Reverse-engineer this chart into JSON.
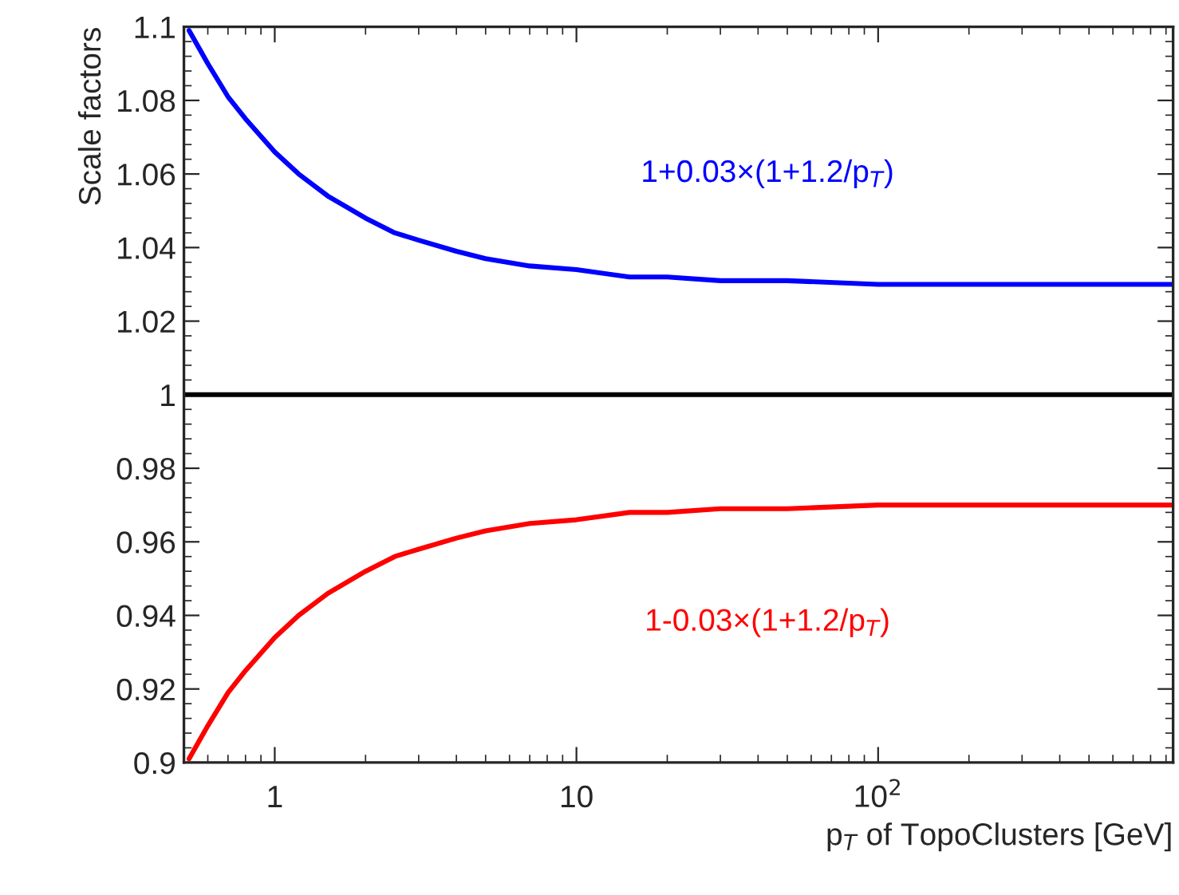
{
  "chart_data": {
    "type": "line",
    "xlabel": "p$_{T}$ of TopoClusters [GeV]",
    "ylabel": "Scale factors",
    "log": "x",
    "xlim": [
      0.5,
      950
    ],
    "xticks": [
      1,
      10,
      {
        "value": 100,
        "label": "10$^{2}$"
      }
    ],
    "ylim": [
      0.9,
      1.1
    ],
    "yticks": [
      0.9,
      0.92,
      0.94,
      0.96,
      0.98,
      1,
      1.02,
      1.04,
      1.06,
      1.08,
      1.1
    ],
    "grid": false,
    "marker": "none",
    "line_style": "solid",
    "ref_lines": [
      {
        "axis": "y",
        "value": 1,
        "color": "#000000"
      }
    ],
    "series": [
      {
        "name": "1+0.03×(1+1.2/p$_{T}$)",
        "color": "#0000ff",
        "x": [
          0.52,
          0.6,
          0.7,
          0.8,
          1,
          1.2,
          1.5,
          2,
          2.5,
          3,
          4,
          5,
          7,
          10,
          15,
          20,
          30,
          50,
          100,
          200,
          500,
          950
        ],
        "values": [
          1.099,
          1.09,
          1.081,
          1.075,
          1.066,
          1.06,
          1.054,
          1.048,
          1.044,
          1.042,
          1.039,
          1.037,
          1.035,
          1.034,
          1.032,
          1.032,
          1.031,
          1.031,
          1.03,
          1.03,
          1.03,
          1.03
        ]
      },
      {
        "name": "1-0.03×(1+1.2/p$_{T}$)",
        "color": "#ff0000",
        "x": [
          0.52,
          0.6,
          0.7,
          0.8,
          1,
          1.2,
          1.5,
          2,
          2.5,
          3,
          4,
          5,
          7,
          10,
          15,
          20,
          30,
          50,
          100,
          200,
          500,
          950
        ],
        "values": [
          0.901,
          0.91,
          0.919,
          0.925,
          0.934,
          0.94,
          0.946,
          0.952,
          0.956,
          0.958,
          0.961,
          0.963,
          0.965,
          0.966,
          0.968,
          0.968,
          0.969,
          0.969,
          0.97,
          0.97,
          0.97,
          0.97
        ]
      }
    ]
  }
}
